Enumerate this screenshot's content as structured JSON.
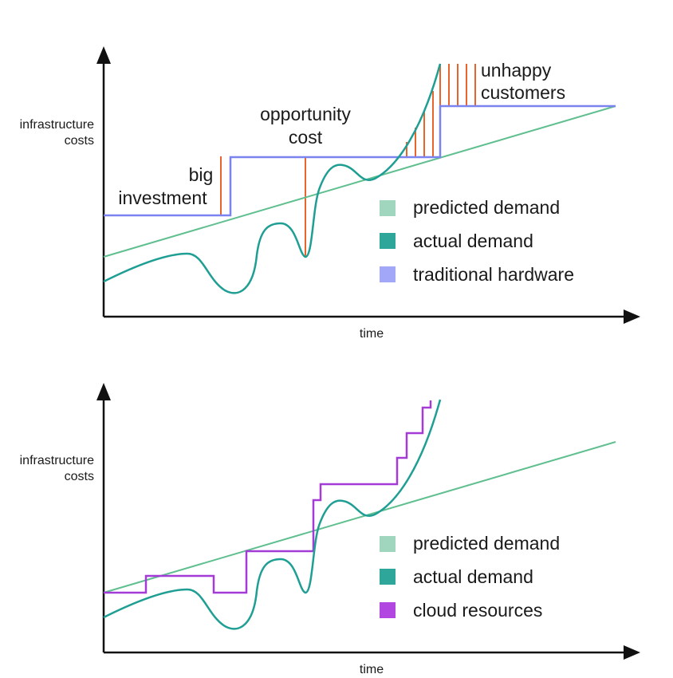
{
  "colors": {
    "predicted": "#5fbf8f",
    "predicted_swatch": "#9fd6bd",
    "actual": "#1f9e94",
    "actual_swatch": "#2ea79a",
    "hardware": "#7b83ef",
    "hardware_swatch": "#a2a7f8",
    "cloud": "#a53bd6",
    "cloud_swatch": "#b146e0",
    "gap": "#e8642a",
    "axis": "#111111"
  },
  "top_chart": {
    "y_axis_label_line1": "infrastructure",
    "y_axis_label_line2": "costs",
    "x_axis_label": "time",
    "annotations": {
      "big_investment_line1": "big",
      "big_investment_line2": "investment",
      "opportunity_cost_line1": "opportunity",
      "opportunity_cost_line2": "cost",
      "unhappy_customers_line1": "unhappy",
      "unhappy_customers_line2": "customers"
    },
    "legend": [
      "predicted demand",
      "actual demand",
      "traditional hardware"
    ]
  },
  "bottom_chart": {
    "y_axis_label_line1": "infrastructure",
    "y_axis_label_line2": "costs",
    "x_axis_label": "time",
    "legend": [
      "predicted demand",
      "actual demand",
      "cloud resources"
    ]
  }
}
